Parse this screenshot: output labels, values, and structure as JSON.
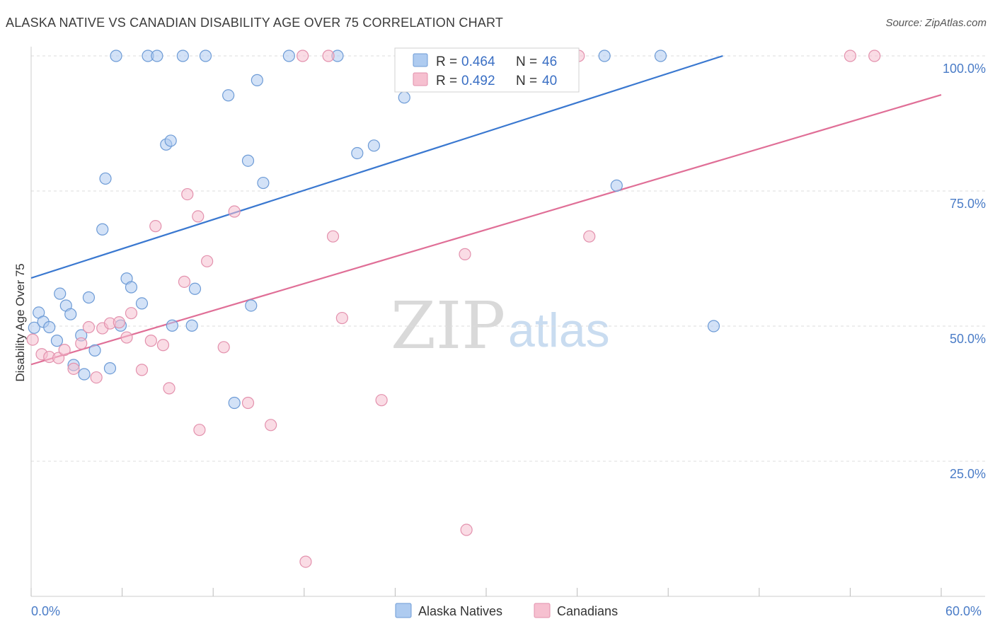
{
  "title": "ALASKA NATIVE VS CANADIAN DISABILITY AGE OVER 75 CORRELATION CHART",
  "source": "Source: ZipAtlas.com",
  "watermark": {
    "zip": "ZIP",
    "atlas": "atlas"
  },
  "colors": {
    "blue_fill": "#aecbf0",
    "blue_stroke": "#6d9bd6",
    "blue_line": "#3a78d0",
    "pink_fill": "#f6c0d0",
    "pink_stroke": "#e391ad",
    "pink_line": "#e06f97",
    "grid": "#dddddd",
    "tick_text": "#4a7cc7"
  },
  "legend": {
    "rows": [
      {
        "r_label": "R =",
        "r_value": "0.464",
        "n_label": "N =",
        "n_value": "46",
        "series": "blue"
      },
      {
        "r_label": "R =",
        "r_value": "0.492",
        "n_label": "N =",
        "n_value": "40",
        "series": "pink"
      }
    ]
  },
  "chart_data": {
    "type": "scatter",
    "title": "ALASKA NATIVE VS CANADIAN DISABILITY AGE OVER 75 CORRELATION CHART",
    "xlabel": "",
    "ylabel": "Disability Age Over 75",
    "xlim": [
      0,
      60
    ],
    "ylim": [
      0,
      100
    ],
    "x_tick_labels": [
      "0.0%",
      "60.0%"
    ],
    "y_ticks": [
      25,
      50,
      75,
      100
    ],
    "y_tick_labels": [
      "25.0%",
      "50.0%",
      "75.0%",
      "100.0%"
    ],
    "grid": true,
    "legend_position": "top-center",
    "series": [
      {
        "name": "Alaska Natives",
        "color": "#6d9bd6",
        "r": 0.464,
        "n": 46,
        "trend": {
          "x": [
            0,
            45.6
          ],
          "y": [
            58.9,
            100
          ]
        },
        "points": [
          [
            0.2,
            49.7
          ],
          [
            0.5,
            52.5
          ],
          [
            0.8,
            50.8
          ],
          [
            1.2,
            49.8
          ],
          [
            1.7,
            47.3
          ],
          [
            1.9,
            56.0
          ],
          [
            2.3,
            53.8
          ],
          [
            2.6,
            52.2
          ],
          [
            2.8,
            42.8
          ],
          [
            3.3,
            48.3
          ],
          [
            3.5,
            41.1
          ],
          [
            3.8,
            55.3
          ],
          [
            4.2,
            45.5
          ],
          [
            4.7,
            67.9
          ],
          [
            4.9,
            77.3
          ],
          [
            5.2,
            42.2
          ],
          [
            5.6,
            100.0
          ],
          [
            5.9,
            50.1
          ],
          [
            6.3,
            58.8
          ],
          [
            6.6,
            57.2
          ],
          [
            7.3,
            54.2
          ],
          [
            7.7,
            100.0
          ],
          [
            8.3,
            100.0
          ],
          [
            8.9,
            83.6
          ],
          [
            9.2,
            84.3
          ],
          [
            9.3,
            50.1
          ],
          [
            10.0,
            100.0
          ],
          [
            10.6,
            50.1
          ],
          [
            10.8,
            56.9
          ],
          [
            11.5,
            100.0
          ],
          [
            13.0,
            92.7
          ],
          [
            13.4,
            35.8
          ],
          [
            14.3,
            80.6
          ],
          [
            14.5,
            53.8
          ],
          [
            14.9,
            95.5
          ],
          [
            15.3,
            76.5
          ],
          [
            17.0,
            100.0
          ],
          [
            20.2,
            100.0
          ],
          [
            21.5,
            82.0
          ],
          [
            22.6,
            83.4
          ],
          [
            24.6,
            92.3
          ],
          [
            30.0,
            100.0
          ],
          [
            37.8,
            100.0
          ],
          [
            38.6,
            76.0
          ],
          [
            41.5,
            100.0
          ],
          [
            45.0,
            50.0
          ]
        ]
      },
      {
        "name": "Canadians",
        "color": "#e391ad",
        "r": 0.492,
        "n": 40,
        "trend": {
          "x": [
            0,
            60
          ],
          "y": [
            42.9,
            92.8
          ]
        },
        "points": [
          [
            0.1,
            47.5
          ],
          [
            0.7,
            44.8
          ],
          [
            1.2,
            44.3
          ],
          [
            1.8,
            44.1
          ],
          [
            2.2,
            45.6
          ],
          [
            2.8,
            42.1
          ],
          [
            3.3,
            46.8
          ],
          [
            3.8,
            49.8
          ],
          [
            4.3,
            40.5
          ],
          [
            4.7,
            49.6
          ],
          [
            5.2,
            50.5
          ],
          [
            5.8,
            50.7
          ],
          [
            6.3,
            47.9
          ],
          [
            6.6,
            52.4
          ],
          [
            7.3,
            41.9
          ],
          [
            7.9,
            47.3
          ],
          [
            8.2,
            68.5
          ],
          [
            8.7,
            46.5
          ],
          [
            9.1,
            38.5
          ],
          [
            10.1,
            58.2
          ],
          [
            10.3,
            74.4
          ],
          [
            11.0,
            70.3
          ],
          [
            11.1,
            30.8
          ],
          [
            11.6,
            62.0
          ],
          [
            12.7,
            46.1
          ],
          [
            13.4,
            71.2
          ],
          [
            14.3,
            35.8
          ],
          [
            15.8,
            31.7
          ],
          [
            17.9,
            100.0
          ],
          [
            18.1,
            6.4
          ],
          [
            19.6,
            100.0
          ],
          [
            19.9,
            66.6
          ],
          [
            20.5,
            51.5
          ],
          [
            23.1,
            36.3
          ],
          [
            28.6,
            63.3
          ],
          [
            28.7,
            12.3
          ],
          [
            36.1,
            100.0
          ],
          [
            36.8,
            66.6
          ],
          [
            54.0,
            100.0
          ],
          [
            55.6,
            100.0
          ]
        ]
      }
    ]
  },
  "bottom_legend": [
    {
      "label": "Alaska Natives",
      "series": "blue"
    },
    {
      "label": "Canadians",
      "series": "pink"
    }
  ]
}
